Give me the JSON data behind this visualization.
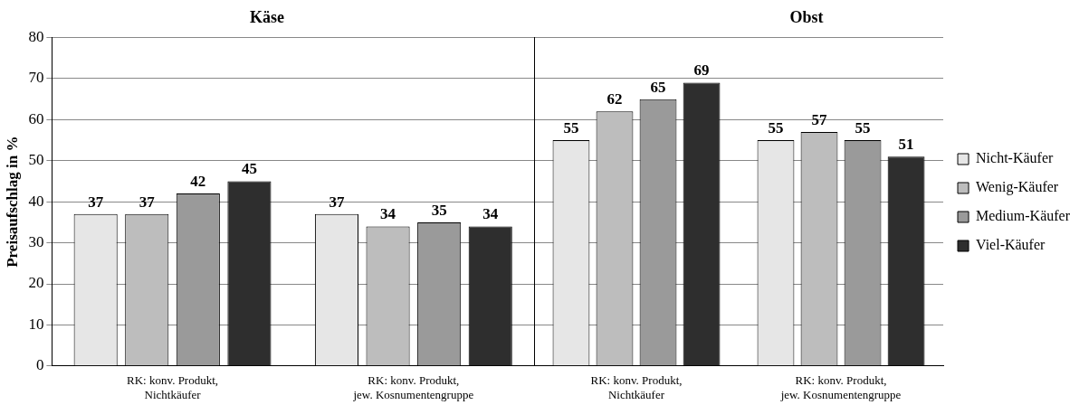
{
  "chart_data": [
    {
      "type": "bar",
      "title": "Käse",
      "ylabel": "Preisaufschlag in %",
      "categories": [
        "RK: konv. Produkt, Nichtkäufer",
        "RK: konv. Produkt, jew. Kosnumentengruppe"
      ],
      "series": [
        {
          "color": "#e6e6e6",
          "values": [
            37,
            37
          ]
        },
        {
          "color": "#bdbdbd",
          "values": [
            37,
            34
          ]
        },
        {
          "color": "#9a9a9a",
          "values": [
            42,
            35
          ]
        },
        {
          "color": "#2e2e2e",
          "values": [
            45,
            34
          ]
        }
      ],
      "ylim": [
        0,
        80
      ],
      "yticks": [
        0,
        10,
        20,
        30,
        40,
        50,
        60,
        70,
        80
      ],
      "grid": "y",
      "data_labels": true,
      "legend": false
    },
    {
      "type": "bar",
      "title": "Obst",
      "categories": [
        "RK: konv. Produkt, Nichtkäufer",
        "RK: konv. Produkt, jew. Kosnumentengruppe"
      ],
      "series": [
        {
          "name": "Nicht-Käufer",
          "color": "#e6e6e6",
          "values": [
            55,
            55
          ]
        },
        {
          "name": "Wenig-Käufer",
          "color": "#bdbdbd",
          "values": [
            62,
            57
          ]
        },
        {
          "name": "Medium-Käufer",
          "color": "#9a9a9a",
          "values": [
            65,
            55
          ]
        },
        {
          "name": "Viel-Käufer",
          "color": "#2e2e2e",
          "values": [
            69,
            51
          ]
        }
      ],
      "ylim": [
        0,
        80
      ],
      "yticks": [
        0,
        10,
        20,
        30,
        40,
        50,
        60,
        70,
        80
      ],
      "grid": "y",
      "data_labels": true,
      "tick_labels": "x",
      "legend": "right"
    }
  ]
}
